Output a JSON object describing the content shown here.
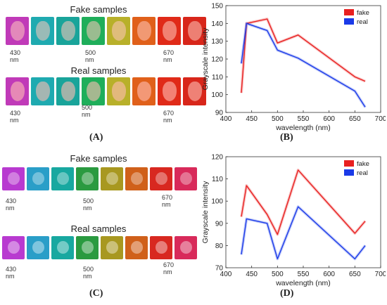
{
  "panelA": {
    "fake_title": "Fake samples",
    "real_title": "Real samples",
    "fake_wl": [
      "430 nm",
      "500 nm",
      "670 nm"
    ],
    "real_wl": [
      "430 nm",
      "500 nm",
      "670 nm"
    ],
    "label": "(A)",
    "tile_colors": [
      "#c03ab8",
      "#1faab0",
      "#19a49a",
      "#1fae5a",
      "#b8b02a",
      "#e0601a",
      "#e02a18",
      "#d8261a"
    ]
  },
  "panelC": {
    "fake_title": "Fake samples",
    "real_title": "Real samples",
    "fake_wl": [
      "430 nm",
      "500 nm",
      "670 nm"
    ],
    "real_wl": [
      "430 nm",
      "500 nm",
      "670 nm"
    ],
    "label": "(C)",
    "tile_colors": [
      "#b83ad0",
      "#2a9ec8",
      "#18a8a0",
      "#2a9a40",
      "#a89820",
      "#d0601a",
      "#d82820",
      "#d82a5a"
    ]
  },
  "panelB": {
    "label": "(B)"
  },
  "panelD": {
    "label": "(D)"
  },
  "chart_data": [
    {
      "type": "line",
      "xlabel": "wavelength (nm)",
      "ylabel": "Grayscale intensity",
      "xlim": [
        400,
        700
      ],
      "ylim": [
        90,
        150
      ],
      "xticks": [
        400,
        450,
        500,
        550,
        600,
        650,
        700
      ],
      "yticks": [
        90,
        100,
        110,
        120,
        130,
        140,
        150
      ],
      "legend": "top-right",
      "series": [
        {
          "name": "fake",
          "color": "#e82020",
          "x": [
            430,
            440,
            480,
            500,
            540,
            650,
            670
          ],
          "y": [
            101,
            140,
            142.5,
            129,
            133.5,
            110,
            107.5
          ]
        },
        {
          "name": "real",
          "color": "#1a3ae8",
          "x": [
            430,
            440,
            480,
            500,
            540,
            650,
            670
          ],
          "y": [
            117.5,
            140,
            136,
            125,
            120.5,
            102,
            93
          ]
        }
      ]
    },
    {
      "type": "line",
      "xlabel": "wavelength (nm)",
      "ylabel": "Grayscale intensity",
      "xlim": [
        400,
        700
      ],
      "ylim": [
        70,
        120
      ],
      "xticks": [
        400,
        450,
        500,
        550,
        600,
        650,
        700
      ],
      "yticks": [
        70,
        80,
        90,
        100,
        110,
        120
      ],
      "legend": "top-right",
      "series": [
        {
          "name": "fake",
          "color": "#e82020",
          "x": [
            430,
            440,
            480,
            500,
            540,
            650,
            670
          ],
          "y": [
            93,
            107,
            94,
            85,
            114,
            85.5,
            91
          ]
        },
        {
          "name": "real",
          "color": "#1a3ae8",
          "x": [
            430,
            440,
            480,
            500,
            540,
            650,
            670
          ],
          "y": [
            76,
            92,
            90,
            74,
            97.5,
            74,
            80
          ]
        }
      ]
    }
  ]
}
